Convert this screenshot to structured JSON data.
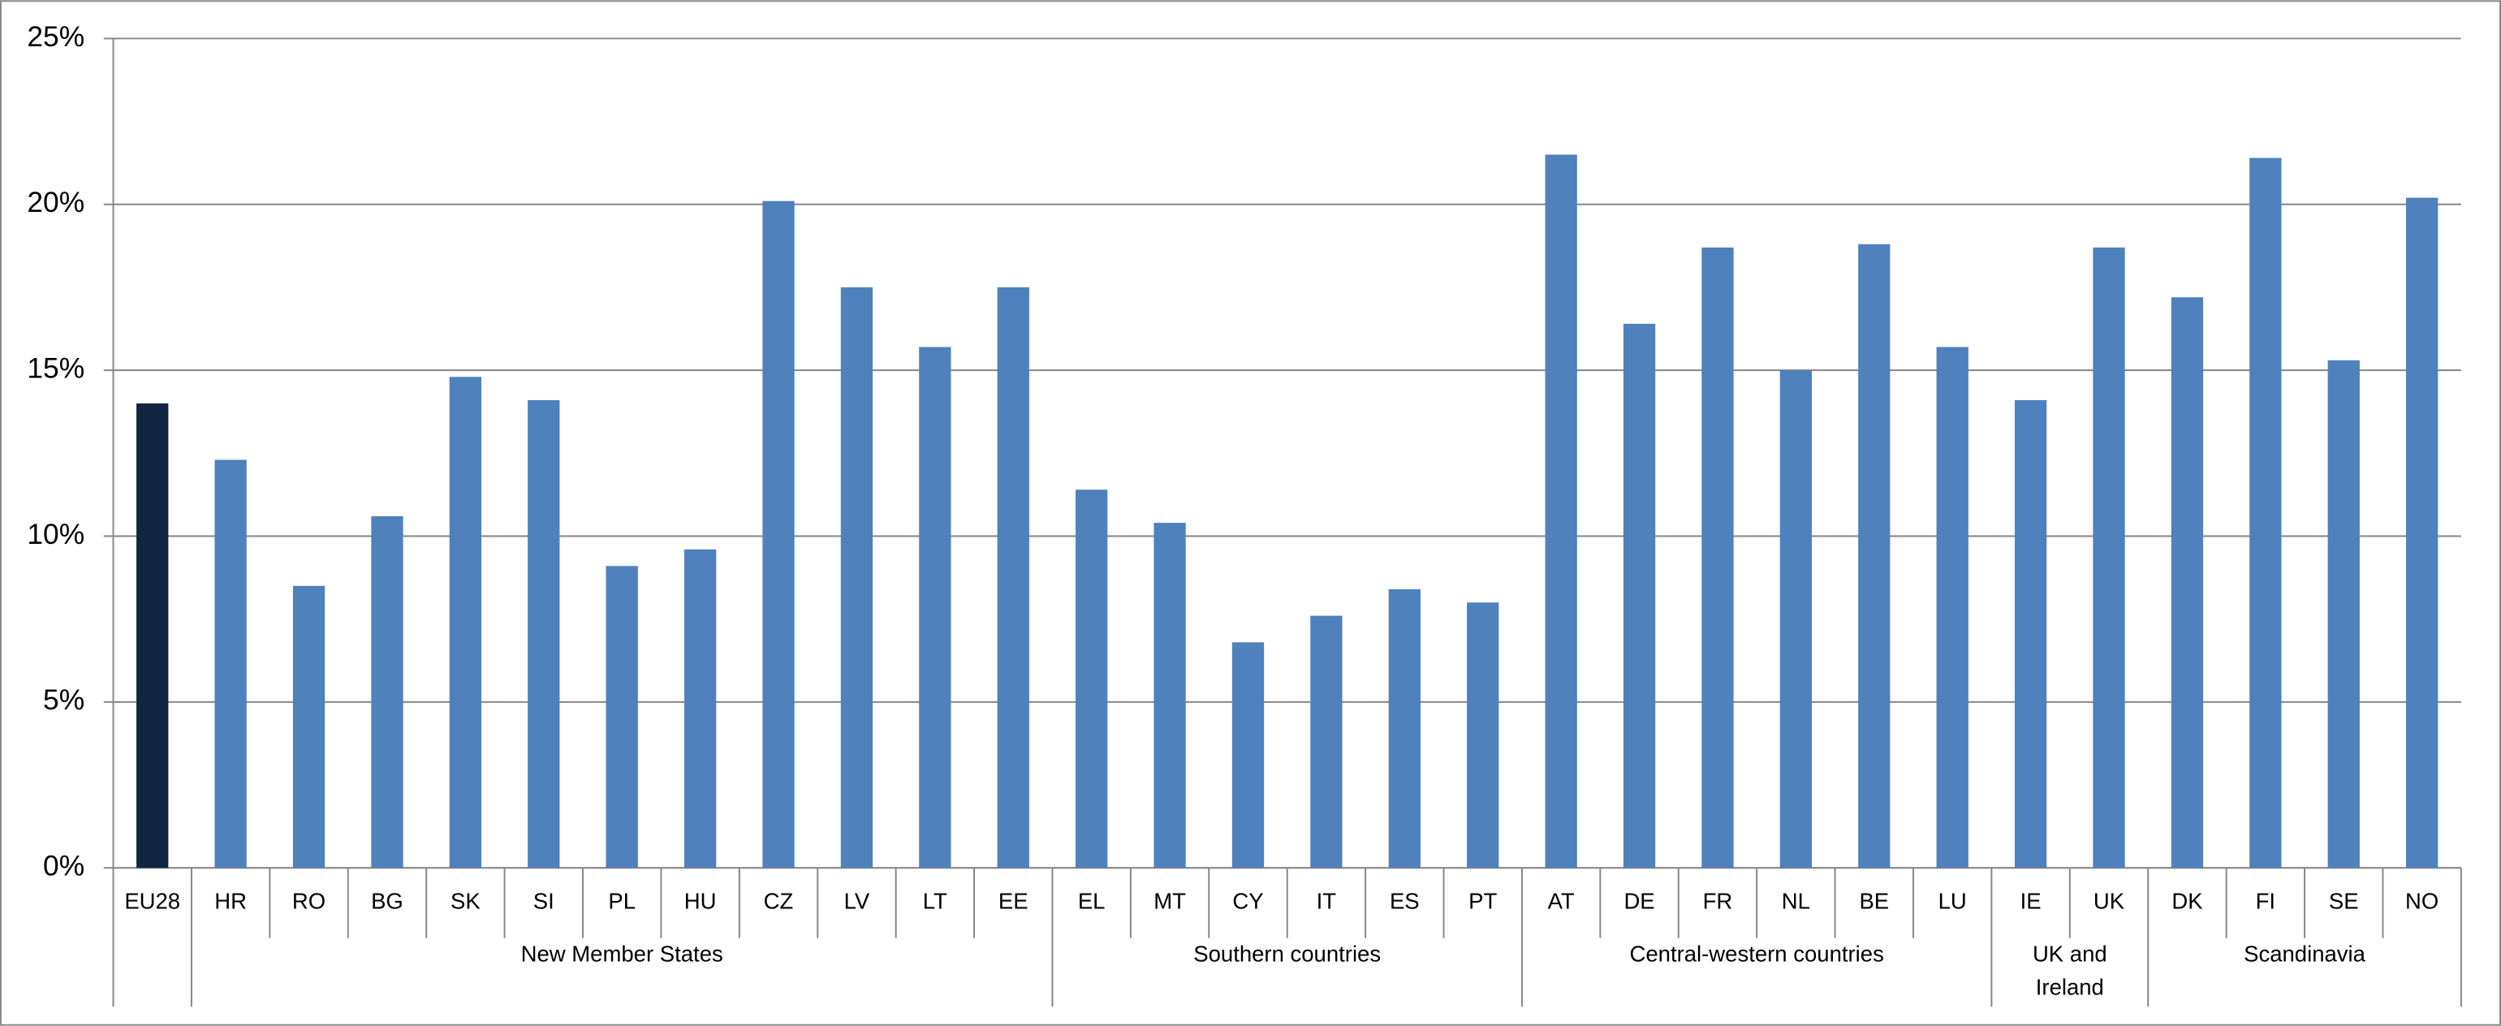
{
  "chart_data": {
    "type": "grouped-bar",
    "ylim": [
      0,
      25
    ],
    "yticks": [
      {
        "value": 0,
        "label": "0%"
      },
      {
        "value": 5,
        "label": "5%"
      },
      {
        "value": 10,
        "label": "10%"
      },
      {
        "value": 15,
        "label": "15%"
      },
      {
        "value": 20,
        "label": "20%"
      },
      {
        "value": 25,
        "label": "25%"
      }
    ],
    "grid": true,
    "groups": [
      {
        "label": null,
        "color": "#12263f",
        "categories": [
          "EU28"
        ],
        "values": [
          14.0
        ]
      },
      {
        "label": "New Member States",
        "color": "#4f81bd",
        "categories": [
          "HR",
          "RO",
          "BG",
          "SK",
          "SI",
          "PL",
          "HU",
          "CZ",
          "LV",
          "LT",
          "EE"
        ],
        "values": [
          12.3,
          8.5,
          10.6,
          14.8,
          14.1,
          9.1,
          9.6,
          20.1,
          17.5,
          15.7,
          17.5
        ]
      },
      {
        "label": "Southern countries",
        "color": "#4f81bd",
        "categories": [
          "EL",
          "MT",
          "CY",
          "IT",
          "ES",
          "PT"
        ],
        "values": [
          11.4,
          10.4,
          6.8,
          7.6,
          8.4,
          8.0
        ]
      },
      {
        "label": "Central-western countries",
        "color": "#4f81bd",
        "categories": [
          "AT",
          "DE",
          "FR",
          "NL",
          "BE",
          "LU"
        ],
        "values": [
          21.5,
          16.4,
          18.7,
          15.0,
          18.8,
          15.7
        ]
      },
      {
        "label": "UK and Ireland",
        "color": "#4f81bd",
        "categories": [
          "IE",
          "UK"
        ],
        "values": [
          14.1,
          18.7
        ]
      },
      {
        "label": "Scandinavia",
        "color": "#4f81bd",
        "categories": [
          "DK",
          "FI",
          "SE",
          "NO"
        ],
        "values": [
          17.2,
          21.4,
          15.3,
          20.2
        ]
      }
    ]
  }
}
